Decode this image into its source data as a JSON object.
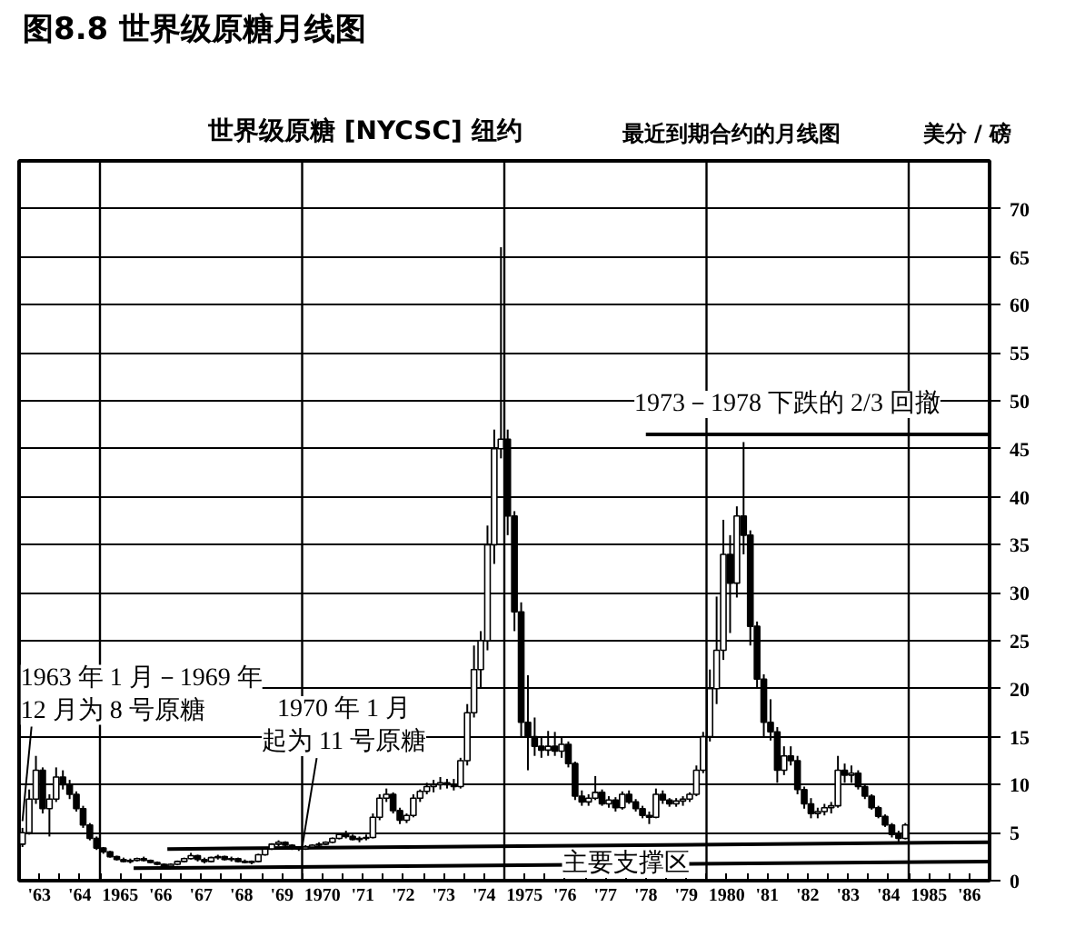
{
  "chart_data": {
    "type": "candlestick",
    "title": "图8.8 世界级原糖月线图",
    "subtitle": "世界级原糖 [NYCSC] 纽约",
    "ylabel": "美分 / 磅",
    "annotations": [
      {
        "text": "1963 年 1 月－1969 年12 月为 8 号原糖",
        "x": "1963-02",
        "y": 6.2
      },
      {
        "text": "1970 年 1 月起为 11 号原糖",
        "x": "1970-01",
        "y": 3.5
      },
      {
        "text": "1973－1978 下跌的 2/3 回撤",
        "x": "1982-01",
        "y": 46.5
      },
      {
        "text": "主要支撑区",
        "x": "1978-01",
        "y": 1.7
      },
      "最近到期合约的月线图"
    ],
    "x": [
      "1963-02",
      "1963-04",
      "1963-06",
      "1963-08",
      "1963-10",
      "1963-12",
      "1964-02",
      "1964-04",
      "1964-06",
      "1964-08",
      "1964-10",
      "1964-12",
      "1965-02",
      "1965-04",
      "1965-06",
      "1965-08",
      "1965-10",
      "1965-12",
      "1966-02",
      "1966-04",
      "1966-06",
      "1966-08",
      "1966-10",
      "1966-12",
      "1967-02",
      "1967-04",
      "1967-06",
      "1967-08",
      "1967-10",
      "1967-12",
      "1968-02",
      "1968-04",
      "1968-06",
      "1968-08",
      "1968-10",
      "1968-12",
      "1969-02",
      "1969-04",
      "1969-06",
      "1969-08",
      "1969-10",
      "1969-12",
      "1970-02",
      "1970-04",
      "1970-06",
      "1970-08",
      "1970-10",
      "1970-12",
      "1971-02",
      "1971-04",
      "1971-06",
      "1971-08",
      "1971-10",
      "1971-12",
      "1972-02",
      "1972-04",
      "1972-06",
      "1972-08",
      "1972-10",
      "1972-12",
      "1973-02",
      "1973-04",
      "1973-06",
      "1973-08",
      "1973-10",
      "1973-12",
      "1974-02",
      "1974-04",
      "1974-06",
      "1974-08",
      "1974-10",
      "1974-12",
      "1975-02",
      "1975-04",
      "1975-06",
      "1975-08",
      "1975-10",
      "1975-12",
      "1976-02",
      "1976-04",
      "1976-06",
      "1976-08",
      "1976-10",
      "1976-12",
      "1977-02",
      "1977-04",
      "1977-06",
      "1977-08",
      "1977-10",
      "1977-12",
      "1978-02",
      "1978-04",
      "1978-06",
      "1978-08",
      "1978-10",
      "1978-12",
      "1979-02",
      "1979-04",
      "1979-06",
      "1979-08",
      "1979-10",
      "1979-12",
      "1980-02",
      "1980-04",
      "1980-06",
      "1980-08",
      "1980-10",
      "1980-12",
      "1981-02",
      "1981-04",
      "1981-06",
      "1981-08",
      "1981-10",
      "1981-12",
      "1982-02",
      "1982-04",
      "1982-06",
      "1982-08",
      "1982-10",
      "1982-12",
      "1983-02",
      "1983-04",
      "1983-06",
      "1983-08",
      "1983-10",
      "1983-12",
      "1984-02",
      "1984-04",
      "1984-06",
      "1984-08",
      "1984-10",
      "1984-12"
    ],
    "ohlc": [
      [
        3.8,
        5.5,
        3.5,
        5.0
      ],
      [
        5.0,
        9.5,
        4.8,
        8.5
      ],
      [
        8.5,
        13.0,
        8.0,
        11.5
      ],
      [
        11.5,
        11.8,
        7.0,
        7.5
      ],
      [
        7.5,
        9.0,
        4.6,
        8.5
      ],
      [
        8.5,
        11.8,
        8.2,
        10.8
      ],
      [
        10.8,
        11.5,
        9.5,
        10.0
      ],
      [
        10.0,
        10.5,
        8.5,
        9.0
      ],
      [
        9.0,
        9.3,
        7.2,
        7.5
      ],
      [
        7.5,
        7.8,
        5.5,
        5.8
      ],
      [
        5.8,
        6.0,
        4.2,
        4.4
      ],
      [
        4.4,
        4.6,
        3.2,
        3.4
      ],
      [
        3.4,
        3.5,
        2.8,
        3.0
      ],
      [
        3.0,
        3.1,
        2.4,
        2.5
      ],
      [
        2.5,
        2.6,
        2.1,
        2.2
      ],
      [
        2.2,
        2.4,
        1.9,
        2.0
      ],
      [
        2.0,
        2.3,
        1.8,
        2.1
      ],
      [
        2.1,
        2.4,
        2.0,
        2.3
      ],
      [
        2.3,
        2.5,
        2.0,
        2.1
      ],
      [
        2.1,
        2.2,
        1.8,
        1.9
      ],
      [
        1.9,
        2.0,
        1.6,
        1.7
      ],
      [
        1.7,
        1.8,
        1.4,
        1.5
      ],
      [
        1.5,
        1.8,
        1.4,
        1.7
      ],
      [
        1.7,
        2.1,
        1.6,
        2.0
      ],
      [
        2.0,
        2.4,
        1.9,
        2.3
      ],
      [
        2.3,
        2.9,
        2.2,
        2.6
      ],
      [
        2.6,
        2.7,
        2.0,
        2.2
      ],
      [
        2.2,
        2.4,
        1.8,
        2.0
      ],
      [
        2.0,
        2.5,
        1.9,
        2.4
      ],
      [
        2.4,
        2.7,
        2.2,
        2.5
      ],
      [
        2.5,
        2.6,
        2.1,
        2.2
      ],
      [
        2.2,
        2.5,
        2.0,
        2.3
      ],
      [
        2.3,
        2.4,
        1.9,
        2.0
      ],
      [
        2.0,
        2.2,
        1.8,
        1.9
      ],
      [
        1.9,
        2.1,
        1.7,
        2.0
      ],
      [
        2.0,
        2.8,
        1.9,
        2.7
      ],
      [
        2.7,
        3.5,
        2.6,
        3.3
      ],
      [
        3.3,
        3.9,
        3.2,
        3.8
      ],
      [
        3.8,
        4.2,
        3.6,
        4.0
      ],
      [
        4.0,
        4.1,
        3.5,
        3.7
      ],
      [
        3.7,
        3.8,
        3.2,
        3.4
      ],
      [
        3.4,
        3.6,
        3.1,
        3.3
      ],
      [
        3.3,
        3.7,
        3.2,
        3.5
      ],
      [
        3.5,
        3.8,
        3.4,
        3.7
      ],
      [
        3.7,
        4.0,
        3.6,
        3.8
      ],
      [
        3.8,
        4.1,
        3.7,
        4.0
      ],
      [
        4.0,
        4.5,
        3.9,
        4.4
      ],
      [
        4.4,
        5.0,
        4.3,
        4.8
      ],
      [
        4.8,
        5.2,
        4.4,
        4.6
      ],
      [
        4.6,
        4.8,
        4.2,
        4.3
      ],
      [
        4.3,
        4.6,
        4.0,
        4.4
      ],
      [
        4.4,
        4.8,
        4.2,
        4.5
      ],
      [
        4.5,
        7.0,
        4.4,
        6.6
      ],
      [
        6.6,
        9.0,
        6.3,
        8.6
      ],
      [
        8.6,
        9.6,
        8.2,
        9.0
      ],
      [
        9.0,
        9.2,
        7.0,
        7.3
      ],
      [
        7.3,
        7.6,
        5.9,
        6.3
      ],
      [
        6.3,
        7.0,
        6.0,
        6.8
      ],
      [
        6.8,
        9.0,
        6.6,
        8.6
      ],
      [
        8.6,
        9.5,
        8.2,
        9.3
      ],
      [
        9.3,
        10.2,
        9.0,
        9.8
      ],
      [
        9.8,
        10.5,
        9.2,
        10.0
      ],
      [
        10.0,
        10.8,
        9.5,
        10.2
      ],
      [
        10.2,
        10.6,
        9.6,
        10.0
      ],
      [
        10.0,
        10.6,
        9.4,
        9.8
      ],
      [
        9.8,
        12.8,
        9.6,
        12.5
      ],
      [
        12.5,
        18.4,
        12.0,
        17.5
      ],
      [
        17.5,
        24.5,
        17.0,
        22.0
      ],
      [
        22.0,
        26.0,
        20.0,
        25.0
      ],
      [
        25.0,
        37.0,
        24.0,
        35.0
      ],
      [
        35.0,
        47.0,
        33.0,
        45.0
      ],
      [
        45.0,
        66.0,
        44.0,
        46.0
      ],
      [
        46.0,
        47.0,
        36.0,
        38.0
      ],
      [
        38.0,
        38.5,
        26.0,
        28.0
      ],
      [
        28.0,
        29.0,
        15.0,
        16.5
      ],
      [
        16.5,
        21.4,
        11.5,
        15.0
      ],
      [
        15.0,
        17.0,
        13.0,
        14.0
      ],
      [
        14.0,
        15.0,
        12.8,
        13.6
      ],
      [
        13.6,
        15.6,
        13.0,
        14.0
      ],
      [
        14.0,
        15.5,
        13.0,
        13.5
      ],
      [
        13.5,
        15.0,
        12.8,
        14.2
      ],
      [
        14.2,
        14.5,
        11.8,
        12.2
      ],
      [
        12.2,
        12.4,
        8.4,
        8.8
      ],
      [
        8.8,
        9.4,
        7.8,
        8.2
      ],
      [
        8.2,
        9.0,
        7.8,
        8.6
      ],
      [
        8.6,
        10.9,
        8.4,
        9.2
      ],
      [
        9.2,
        9.5,
        7.8,
        8.0
      ],
      [
        8.0,
        8.8,
        7.6,
        8.4
      ],
      [
        8.4,
        8.7,
        7.2,
        7.6
      ],
      [
        7.6,
        9.3,
        7.4,
        9.0
      ],
      [
        9.0,
        9.4,
        8.0,
        8.2
      ],
      [
        8.2,
        8.5,
        7.2,
        7.5
      ],
      [
        7.5,
        7.8,
        6.5,
        6.8
      ],
      [
        6.8,
        7.2,
        5.9,
        6.6
      ],
      [
        6.6,
        9.6,
        6.5,
        9.0
      ],
      [
        9.0,
        9.4,
        8.0,
        8.4
      ],
      [
        8.4,
        8.6,
        7.7,
        8.0
      ],
      [
        8.0,
        8.6,
        7.7,
        8.3
      ],
      [
        8.3,
        8.8,
        7.8,
        8.5
      ],
      [
        8.5,
        9.2,
        8.2,
        9.0
      ],
      [
        9.0,
        12.0,
        8.8,
        11.5
      ],
      [
        11.5,
        15.5,
        11.2,
        15.0
      ],
      [
        15.0,
        22.0,
        14.5,
        20.0
      ],
      [
        20.0,
        29.6,
        18.4,
        24.0
      ],
      [
        24.0,
        37.6,
        23.0,
        34.0
      ],
      [
        34.0,
        36.0,
        25.8,
        31.0
      ],
      [
        31.0,
        39.0,
        29.5,
        38.0
      ],
      [
        38.0,
        45.7,
        34.0,
        36.0
      ],
      [
        36.0,
        36.5,
        24.5,
        26.5
      ],
      [
        26.5,
        27.0,
        20.0,
        21.0
      ],
      [
        21.0,
        21.5,
        15.0,
        16.5
      ],
      [
        16.5,
        18.9,
        14.6,
        15.5
      ],
      [
        15.5,
        16.0,
        10.2,
        11.5
      ],
      [
        11.5,
        14.0,
        11.0,
        13.0
      ],
      [
        13.0,
        14.0,
        12.0,
        12.5
      ],
      [
        12.5,
        13.0,
        9.0,
        9.5
      ],
      [
        9.5,
        9.8,
        7.5,
        8.0
      ],
      [
        8.0,
        8.6,
        6.5,
        7.0
      ],
      [
        7.0,
        7.6,
        6.5,
        7.2
      ],
      [
        7.2,
        8.0,
        6.8,
        7.6
      ],
      [
        7.6,
        8.2,
        7.0,
        7.8
      ],
      [
        7.8,
        13.0,
        7.6,
        11.5
      ],
      [
        11.5,
        12.2,
        10.2,
        11.0
      ],
      [
        11.0,
        12.0,
        10.2,
        11.2
      ],
      [
        11.2,
        11.5,
        9.5,
        9.8
      ],
      [
        9.8,
        10.0,
        8.5,
        8.8
      ],
      [
        8.8,
        9.0,
        7.4,
        7.6
      ],
      [
        7.6,
        7.8,
        6.5,
        6.7
      ],
      [
        6.7,
        6.9,
        5.6,
        5.8
      ],
      [
        5.8,
        6.0,
        4.5,
        4.8
      ],
      [
        4.8,
        5.2,
        4.0,
        4.4
      ],
      [
        4.4,
        6.0,
        4.3,
        5.8
      ]
    ],
    "color": "#000000",
    "series": [
      {
        "type": "line",
        "x": [
          "1966-09",
          "1987-01"
        ],
        "values": [
          3.3,
          4.0
        ],
        "color": "#000000"
      },
      {
        "type": "line",
        "x": [
          "1965-11",
          "1987-01"
        ],
        "values": [
          1.3,
          2.0
        ],
        "color": "#000000"
      },
      {
        "type": "line",
        "x": [
          "1978-07",
          "1987-01"
        ],
        "values": [
          46.5,
          46.5
        ],
        "color": "#000000"
      }
    ],
    "xlim": [
      "1963-01",
      "1987-01"
    ],
    "ylim": [
      0,
      75
    ],
    "xticks": [
      {
        "value": "1963-07",
        "label": "'63"
      },
      {
        "value": "1964-01",
        "label": null
      },
      {
        "value": "1964-07",
        "label": "'64"
      },
      {
        "value": "1965-01",
        "label": null
      },
      {
        "value": "1965-07",
        "label": "1965"
      },
      {
        "value": "1966-01",
        "label": null
      },
      {
        "value": "1966-07",
        "label": "'66"
      },
      {
        "value": "1967-01",
        "label": null
      },
      {
        "value": "1967-07",
        "label": "'67"
      },
      {
        "value": "1968-01",
        "label": null
      },
      {
        "value": "1968-07",
        "label": "'68"
      },
      {
        "value": "1969-01",
        "label": null
      },
      {
        "value": "1969-07",
        "label": "'69"
      },
      {
        "value": "1970-01",
        "label": null
      },
      {
        "value": "1970-07",
        "label": "1970"
      },
      {
        "value": "1971-01",
        "label": null
      },
      {
        "value": "1971-07",
        "label": "'71"
      },
      {
        "value": "1972-01",
        "label": null
      },
      {
        "value": "1972-07",
        "label": "'72"
      },
      {
        "value": "1973-01",
        "label": null
      },
      {
        "value": "1973-07",
        "label": "'73"
      },
      {
        "value": "1974-01",
        "label": null
      },
      {
        "value": "1974-07",
        "label": "'74"
      },
      {
        "value": "1975-01",
        "label": null
      },
      {
        "value": "1975-07",
        "label": "1975"
      },
      {
        "value": "1976-01",
        "label": null
      },
      {
        "value": "1976-07",
        "label": "'76"
      },
      {
        "value": "1977-01",
        "label": null
      },
      {
        "value": "1977-07",
        "label": "'77"
      },
      {
        "value": "1978-01",
        "label": null
      },
      {
        "value": "1978-07",
        "label": "'78"
      },
      {
        "value": "1979-01",
        "label": null
      },
      {
        "value": "1979-07",
        "label": "'79"
      },
      {
        "value": "1980-01",
        "label": null
      },
      {
        "value": "1980-07",
        "label": "1980"
      },
      {
        "value": "1981-01",
        "label": null
      },
      {
        "value": "1981-07",
        "label": "'81"
      },
      {
        "value": "1982-01",
        "label": null
      },
      {
        "value": "1982-07",
        "label": "'82"
      },
      {
        "value": "1983-01",
        "label": null
      },
      {
        "value": "1983-07",
        "label": "'83"
      },
      {
        "value": "1984-01",
        "label": null
      },
      {
        "value": "1984-07",
        "label": "'84"
      },
      {
        "value": "1985-01",
        "label": null
      },
      {
        "value": "1985-07",
        "label": "1985"
      },
      {
        "value": "1986-01",
        "label": null
      },
      {
        "value": "1986-07",
        "label": "'86"
      }
    ],
    "yticks": [
      0,
      5,
      10,
      15,
      20,
      25,
      30,
      35,
      40,
      45,
      50,
      55,
      60,
      65,
      70
    ],
    "ref_lines": [
      {
        "axis": "x",
        "value": "1965-01"
      },
      {
        "axis": "x",
        "value": "1970-01"
      },
      {
        "axis": "x",
        "value": "1975-01"
      },
      {
        "axis": "x",
        "value": "1980-01"
      },
      {
        "axis": "x",
        "value": "1985-01"
      }
    ],
    "grid": "y"
  }
}
